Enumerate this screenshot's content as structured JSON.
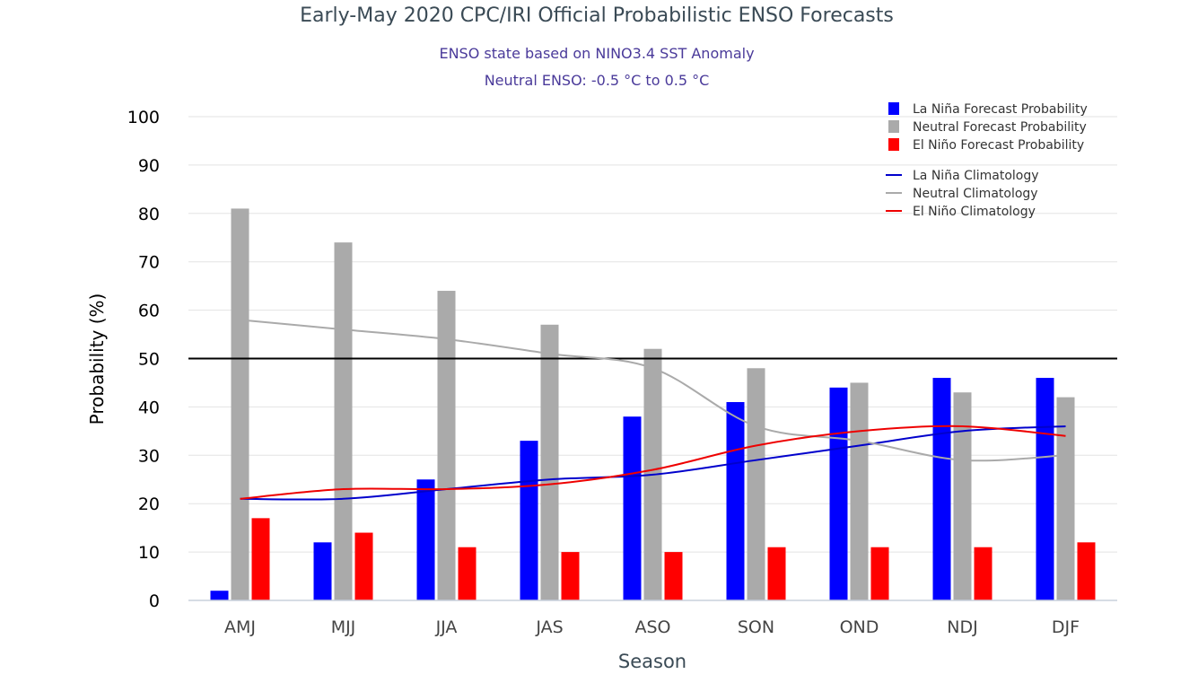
{
  "chart_data": {
    "type": "bar",
    "title": "Early-May 2020 CPC/IRI Official Probabilistic ENSO Forecasts",
    "subtitle_lines": [
      "ENSO state based on NINO3.4 SST Anomaly",
      "Neutral ENSO: -0.5 °C to 0.5 °C"
    ],
    "xlabel": "Season",
    "ylabel": "Probability (%)",
    "ylim": [
      0,
      100
    ],
    "yticks": [
      0,
      10,
      20,
      30,
      40,
      50,
      60,
      70,
      80,
      90,
      100
    ],
    "grid": true,
    "reference_line": 50,
    "legend_position": "top-right",
    "categories": [
      "AMJ",
      "MJJ",
      "JJA",
      "JAS",
      "ASO",
      "SON",
      "OND",
      "NDJ",
      "DJF"
    ],
    "series": [
      {
        "name": "La Niña Forecast Probability",
        "kind": "bar",
        "color": "#0000ff",
        "values": [
          2,
          12,
          25,
          33,
          38,
          41,
          44,
          46,
          46
        ]
      },
      {
        "name": "Neutral Forecast Probability",
        "kind": "bar",
        "color": "#aaaaaa",
        "values": [
          81,
          74,
          64,
          57,
          52,
          48,
          45,
          43,
          42
        ]
      },
      {
        "name": "El Niño Forecast Probability",
        "kind": "bar",
        "color": "#ff0000",
        "values": [
          17,
          14,
          11,
          10,
          10,
          11,
          11,
          11,
          12
        ]
      },
      {
        "name": "La Niña Climatology",
        "kind": "line",
        "color": "#0000cc",
        "values": [
          21,
          21,
          23,
          25,
          26,
          29,
          32,
          35,
          36
        ]
      },
      {
        "name": "Neutral Climatology",
        "kind": "line",
        "color": "#aaaaaa",
        "values": [
          58,
          56,
          54,
          51,
          48,
          36,
          33,
          29,
          30
        ]
      },
      {
        "name": "El Niño Climatology",
        "kind": "line",
        "color": "#ee0000",
        "values": [
          21,
          23,
          23,
          24,
          27,
          32,
          35,
          36,
          34
        ]
      }
    ]
  }
}
